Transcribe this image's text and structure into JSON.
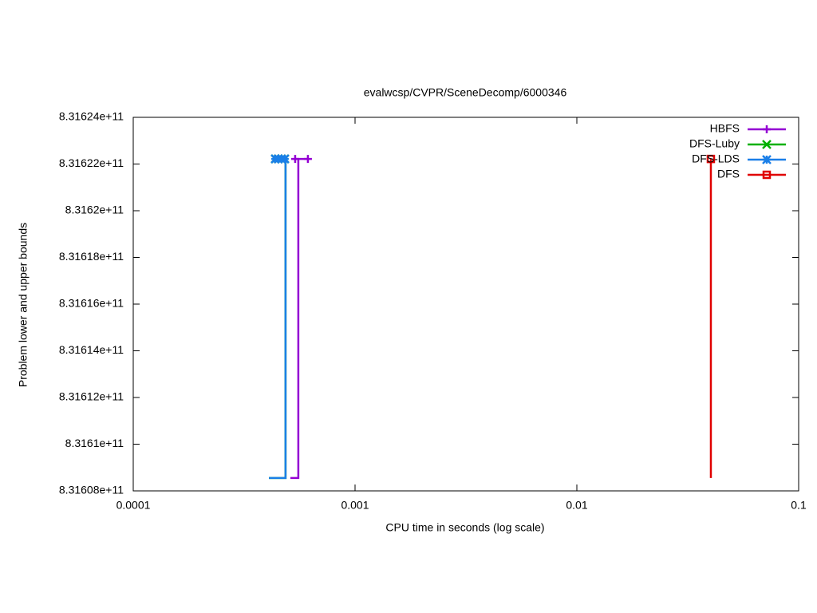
{
  "chart_data": {
    "type": "line",
    "title": "evalwcsp/CVPR/SceneDecomp/6000346",
    "xlabel": "CPU time in seconds (log scale)",
    "ylabel": "Problem lower and upper bounds",
    "xscale": "log",
    "xlim": [
      0.0001,
      0.1
    ],
    "xticks": [
      0.0001,
      0.001,
      0.01,
      0.1
    ],
    "ylim": [
      831608000000,
      831624000000
    ],
    "yticks": [
      {
        "value": 831608000000,
        "label": "8.31608e+11"
      },
      {
        "value": 831610000000,
        "label": "8.3161e+11"
      },
      {
        "value": 831612000000,
        "label": "8.31612e+11"
      },
      {
        "value": 831614000000,
        "label": "8.31614e+11"
      },
      {
        "value": 831616000000,
        "label": "8.31616e+11"
      },
      {
        "value": 831618000000,
        "label": "8.31618e+11"
      },
      {
        "value": 831620000000,
        "label": "8.3162e+11"
      },
      {
        "value": 831622000000,
        "label": "8.31622e+11"
      },
      {
        "value": 831624000000,
        "label": "8.31624e+11"
      }
    ],
    "legend": "top-right",
    "series": [
      {
        "name": "HBFS",
        "color": "#9400d3",
        "marker": "plus",
        "line": {
          "x": [
            0.000511,
            0.000555,
            0.000555
          ],
          "values": [
            831608550000,
            831608550000,
            831622220000
          ]
        },
        "points": {
          "x": [
            0.000537,
            0.000613
          ],
          "values": [
            831622220000,
            831622220000
          ]
        }
      },
      {
        "name": "DFS-Luby",
        "color": "#00b000",
        "marker": "cross",
        "line": {
          "x": [
            0.000409,
            0.000486,
            0.000486
          ],
          "values": [
            831608550000,
            831608550000,
            831622220000
          ]
        },
        "points": {
          "x": [
            0.000437,
            0.000451,
            0.000466,
            0.000482
          ],
          "values": [
            831622220000,
            831622220000,
            831622220000,
            831622220000
          ]
        }
      },
      {
        "name": "DFS-LDS",
        "color": "#1a7fe8",
        "marker": "star",
        "line": {
          "x": [
            0.000409,
            0.000486,
            0.000486
          ],
          "values": [
            831608550000,
            831608550000,
            831622220000
          ]
        },
        "points": {
          "x": [
            0.000437,
            0.000451,
            0.000466,
            0.000482
          ],
          "values": [
            831622220000,
            831622220000,
            831622220000,
            831622220000
          ]
        }
      },
      {
        "name": "DFS",
        "color": "#e00000",
        "marker": "square",
        "line": {
          "x": [
            0.0402,
            0.0402
          ],
          "values": [
            831608550000,
            831622220000
          ]
        },
        "points": {
          "x": [
            0.0402
          ],
          "values": [
            831622220000
          ]
        }
      }
    ]
  }
}
